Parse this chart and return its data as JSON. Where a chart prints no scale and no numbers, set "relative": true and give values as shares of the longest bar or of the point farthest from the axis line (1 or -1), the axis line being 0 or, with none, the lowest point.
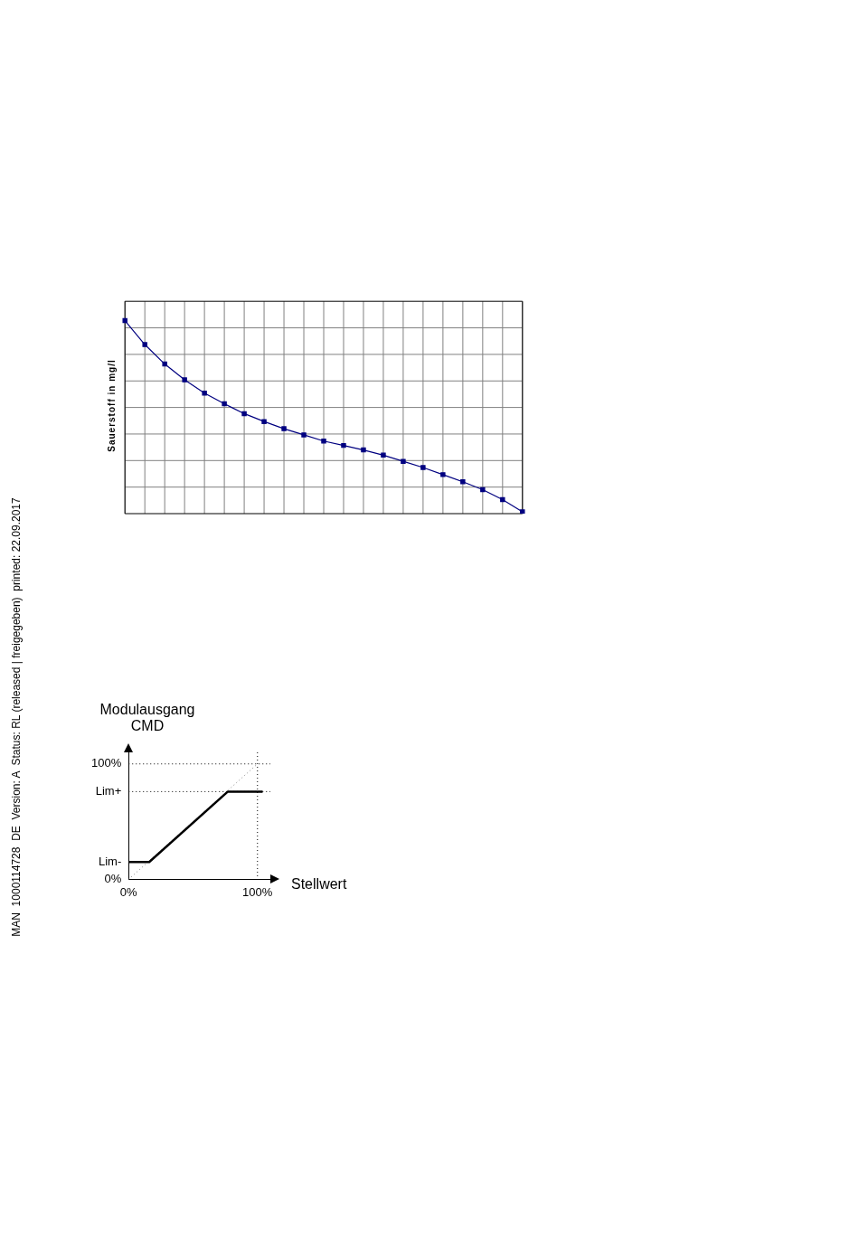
{
  "chart_data": [
    {
      "type": "line",
      "relative": true,
      "ylabel": "Sauerstoff in mg/l",
      "categories": [
        null,
        null,
        null,
        null,
        null,
        null,
        null,
        null,
        null,
        null,
        null,
        null,
        null,
        null,
        null,
        null,
        null,
        null,
        null,
        null,
        null
      ],
      "series": [
        {
          "color": "#000080",
          "values": [
            1,
            0.876,
            0.775,
            0.693,
            0.624,
            0.569,
            0.518,
            0.477,
            0.44,
            0.408,
            0.376,
            0.353,
            0.33,
            0.303,
            0.271,
            0.239,
            0.202,
            0.165,
            0.124,
            0.073,
            0.009
          ]
        }
      ],
      "marker": "square",
      "grid": true,
      "legend": false,
      "annotations": [
        "MAN  1000114728  DE  Version: A  Status: RL (released | freigegeben)  printed: 22.09.2017"
      ]
    },
    {
      "type": "line",
      "xlabel": "Stellwert",
      "ylabel": "Modulausgang CMD",
      "xlim": [
        0,
        110
      ],
      "ylim": [
        0,
        110
      ],
      "xticks": [
        {
          "value": 0,
          "label": "0%"
        },
        {
          "value": 100,
          "label": "100%"
        }
      ],
      "yticks": [
        {
          "value": 0,
          "label": "0%"
        },
        {
          "value": 15,
          "label": "Lim-"
        },
        {
          "value": 76,
          "label": "Lim+"
        },
        {
          "value": 100,
          "label": "100%"
        }
      ],
      "series": [
        {
          "color": "#000000",
          "x": [
            0,
            16,
            77,
            104
          ],
          "values": [
            15,
            15,
            76,
            76
          ],
          "line_style": "solid"
        },
        {
          "color": "#808080",
          "x": [
            0,
            100
          ],
          "values": [
            0,
            100
          ],
          "line_style": "dotted"
        }
      ],
      "ref_lines": [
        {
          "axis": "y",
          "value": 100,
          "line_style": "dotted"
        },
        {
          "axis": "y",
          "value": 76,
          "line_style": "dotted"
        },
        {
          "axis": "x",
          "value": 100,
          "line_style": "dotted"
        }
      ],
      "marker": "none",
      "grid": false,
      "legend": false
    }
  ]
}
